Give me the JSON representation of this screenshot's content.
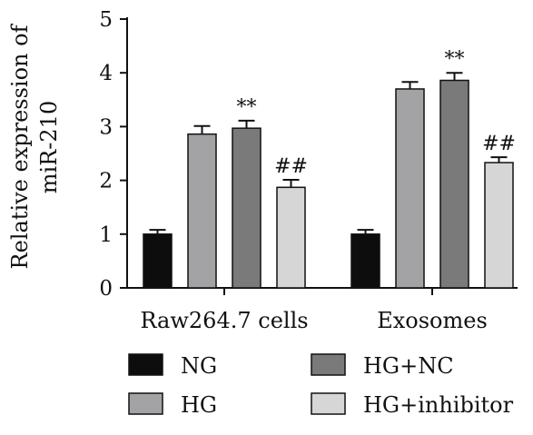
{
  "chart_data": {
    "type": "bar",
    "ylabel_line1": "Relative expression of",
    "ylabel_line2": "miR-210",
    "ylim": [
      0,
      5
    ],
    "yticks": [
      0,
      1,
      2,
      3,
      4,
      5
    ],
    "categories": [
      "Raw264.7 cells",
      "Exosomes"
    ],
    "series": [
      {
        "name": "NG",
        "color": "#0d0d0d",
        "values": [
          1.0,
          1.0
        ],
        "errors": [
          0.08,
          0.08
        ]
      },
      {
        "name": "HG",
        "color": "#a3a3a6",
        "values": [
          2.86,
          3.7
        ],
        "errors": [
          0.15,
          0.13
        ]
      },
      {
        "name": "HG+NC",
        "color": "#7a7a7a",
        "values": [
          2.97,
          3.86
        ],
        "errors": [
          0.14,
          0.14
        ]
      },
      {
        "name": "HG+inhibitor",
        "color": "#d6d6d6",
        "values": [
          1.87,
          2.33
        ],
        "errors": [
          0.14,
          0.1
        ]
      }
    ],
    "annotations": [
      {
        "category": 0,
        "series": 2,
        "text": "**"
      },
      {
        "category": 0,
        "series": 3,
        "text": "##"
      },
      {
        "category": 1,
        "series": 2,
        "text": "**"
      },
      {
        "category": 1,
        "series": 3,
        "text": "##"
      }
    ],
    "legend_placement": "bottom"
  }
}
